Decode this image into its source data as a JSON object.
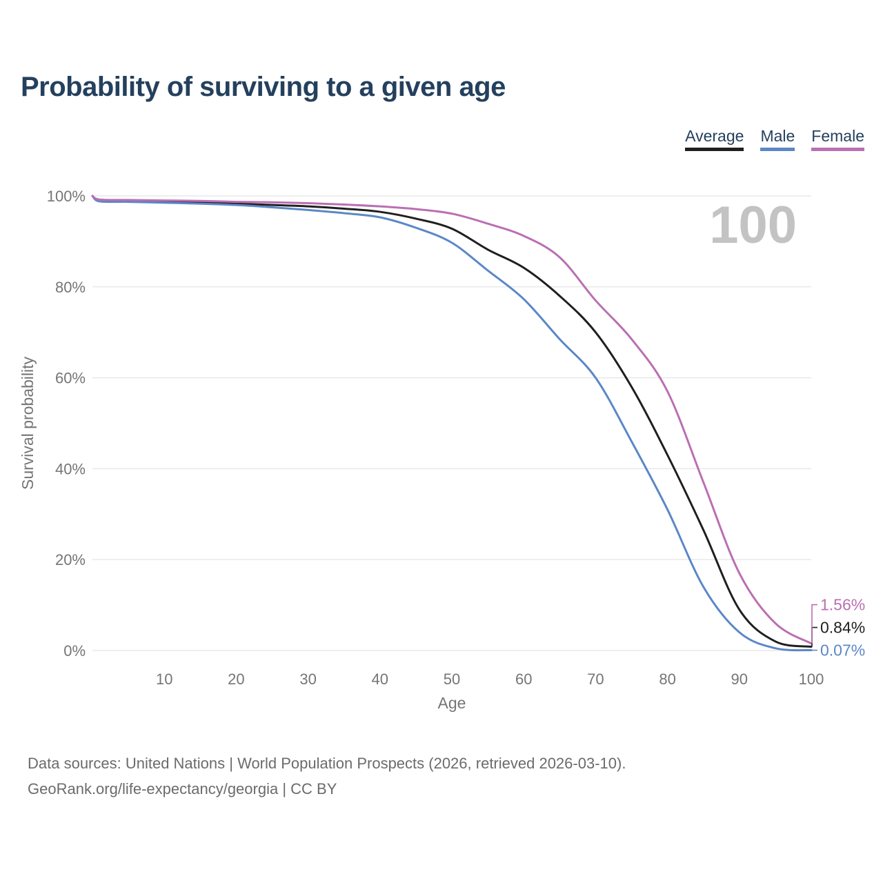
{
  "page": {
    "title": "Probability of surviving to a given age",
    "watermark": "100",
    "footer_line1": "Data sources: United Nations | World Population Prospects (2026, retrieved 2026-03-10).",
    "footer_line2": "GeoRank.org/life-expectancy/georgia | CC BY"
  },
  "colors": {
    "title": "#24405e",
    "axis_text": "#757575",
    "grid": "#e9e9e9",
    "watermark": "#c3c3c3",
    "footer_text": "#6b6b6b",
    "average": "#1f1f1f",
    "male": "#5b87c7",
    "female": "#ba6fb2"
  },
  "chart_data": {
    "type": "line",
    "title": "Probability of surviving to a given age",
    "xlabel": "Age",
    "ylabel": "Survival probability",
    "xlim": [
      0,
      100
    ],
    "ylim": [
      0,
      100
    ],
    "x_ticks": [
      10,
      20,
      30,
      40,
      50,
      60,
      70,
      80,
      90,
      100
    ],
    "y_ticks": [
      "0%",
      "20%",
      "40%",
      "60%",
      "80%",
      "100%"
    ],
    "grid": "horizontal",
    "legend_position": "top-right",
    "watermark": "100",
    "x": [
      0,
      1,
      5,
      10,
      15,
      20,
      25,
      30,
      35,
      40,
      45,
      50,
      55,
      60,
      65,
      70,
      75,
      80,
      85,
      90,
      95,
      100
    ],
    "series": [
      {
        "name": "Average",
        "color": "#1f1f1f",
        "end_label": "0.84%",
        "values": [
          100,
          99.0,
          98.9,
          98.7,
          98.5,
          98.3,
          98.0,
          97.7,
          97.2,
          96.5,
          95.0,
          92.8,
          88.2,
          84.2,
          78.0,
          70.0,
          58.0,
          43.0,
          26.5,
          9.0,
          2.0,
          0.84
        ]
      },
      {
        "name": "Male",
        "color": "#5b87c7",
        "end_label": "0.07%",
        "values": [
          100,
          98.8,
          98.7,
          98.5,
          98.3,
          98.0,
          97.5,
          96.9,
          96.2,
          95.3,
          93.0,
          89.7,
          83.6,
          77.3,
          68.5,
          60.0,
          46.0,
          31.0,
          14.0,
          4.0,
          0.5,
          0.07
        ]
      },
      {
        "name": "Female",
        "color": "#ba6fb2",
        "end_label": "1.56%",
        "values": [
          100,
          99.2,
          99.1,
          99.0,
          98.9,
          98.7,
          98.6,
          98.4,
          98.1,
          97.7,
          97.1,
          96.1,
          93.9,
          91.2,
          86.5,
          77.0,
          68.5,
          57.0,
          37.0,
          17.0,
          6.0,
          1.56
        ]
      }
    ]
  }
}
